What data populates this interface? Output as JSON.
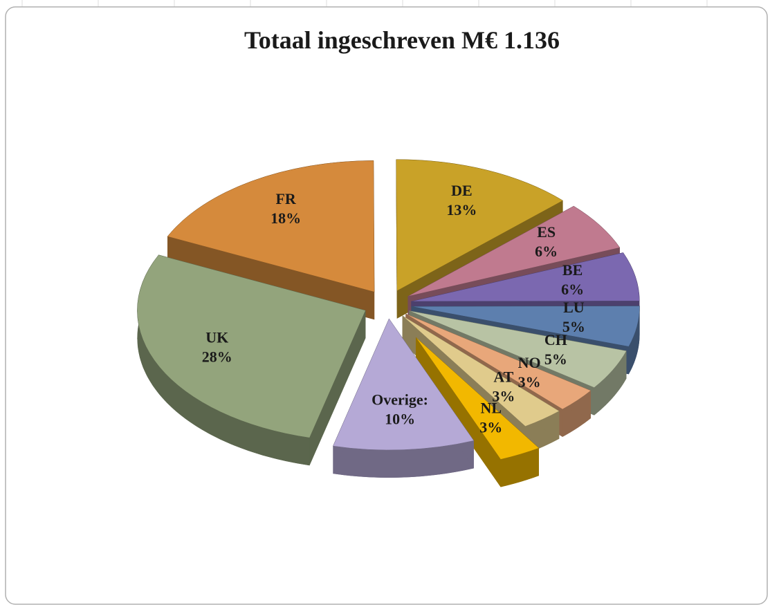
{
  "chart_data": {
    "type": "pie",
    "title": "Totaal ingeschreven M€ 1.136",
    "categories": [
      "FR",
      "DE",
      "ES",
      "BE",
      "LU",
      "CH",
      "NO",
      "AT",
      "NL",
      "Overige:",
      "UK"
    ],
    "values": [
      18,
      13,
      6,
      6,
      5,
      5,
      3,
      3,
      3,
      10,
      28
    ],
    "value_labels": [
      "18%",
      "13%",
      "6%",
      "6%",
      "5%",
      "5%",
      "3%",
      "3%",
      "3%",
      "10%",
      "28%"
    ],
    "colors": [
      "#d58a3c",
      "#c9a228",
      "#c07a8f",
      "#7b68b0",
      "#5d7fae",
      "#b8c3a4",
      "#e8a77a",
      "#e0cb8c",
      "#f2b800",
      "#b5a9d6",
      "#93a47c"
    ]
  }
}
